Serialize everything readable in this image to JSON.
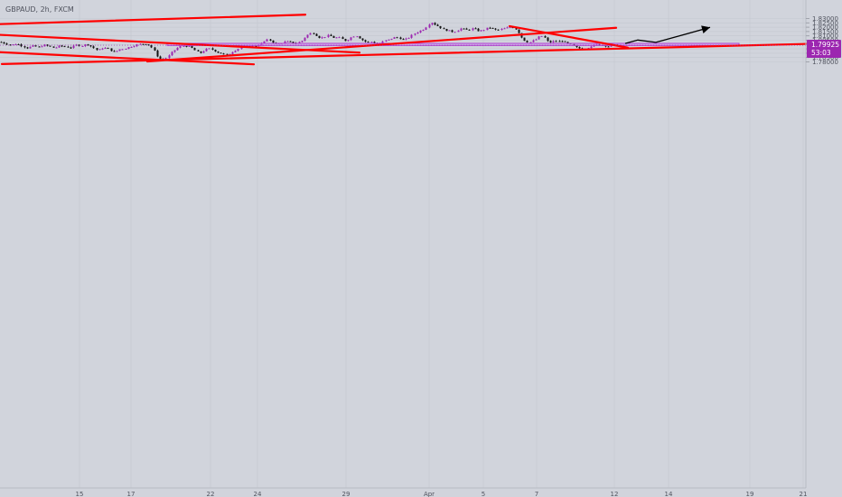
{
  "header": {
    "symbol_label": "GBPAUD, 2h, FXCM"
  },
  "colors": {
    "background": "#d1d4dc",
    "grid": "#c4c7cf",
    "candle_up": "#9c27b0",
    "candle_down": "#131313",
    "trendline": "#ff0000",
    "zone_fill": "#d28cff",
    "zone_border": "#b040d0",
    "arrow": "#000000",
    "price_tag": "#9c27b0"
  },
  "chart_data": {
    "type": "candlestick",
    "symbol": "GBPAUD",
    "timeframe": "2h",
    "source": "FXCM",
    "y_axis": {
      "range": [
        1.776,
        1.834
      ],
      "tick_labels": [
        "1.83000",
        "1.82500",
        "1.82000",
        "1.81500",
        "1.81000",
        "1.80500",
        "1.80000",
        "1.79500",
        "1.79000",
        "1.78500",
        "1.78000"
      ],
      "tick_values": [
        1.83,
        1.825,
        1.82,
        1.815,
        1.81,
        1.805,
        1.8,
        1.795,
        1.79,
        1.785,
        1.78
      ]
    },
    "x_axis": {
      "tick_labels": [
        "15",
        "17",
        "22",
        "24",
        "29",
        "Apr",
        "5",
        "7",
        "12",
        "14",
        "19",
        "21"
      ]
    },
    "current_price": {
      "value": 1.79925,
      "label": "1.79925",
      "countdown": "53:03"
    },
    "price_path": [
      [
        0,
        1.803
      ],
      [
        6,
        1.801
      ],
      [
        12,
        1.7995
      ],
      [
        18,
        1.801
      ],
      [
        24,
        1.7985
      ],
      [
        30,
        1.796
      ],
      [
        36,
        1.7985
      ],
      [
        42,
        1.797
      ],
      [
        48,
        1.7995
      ],
      [
        54,
        1.798
      ],
      [
        60,
        1.796
      ],
      [
        66,
        1.7985
      ],
      [
        72,
        1.7975
      ],
      [
        78,
        1.7965
      ],
      [
        84,
        1.7995
      ],
      [
        90,
        1.7985
      ],
      [
        96,
        1.8005
      ],
      [
        102,
        1.797
      ],
      [
        108,
        1.793
      ],
      [
        114,
        1.7965
      ],
      [
        120,
        1.795
      ],
      [
        126,
        1.791
      ],
      [
        132,
        1.7945
      ],
      [
        138,
        1.7955
      ],
      [
        144,
        1.7975
      ],
      [
        150,
        1.7995
      ],
      [
        156,
        1.8005
      ],
      [
        162,
        1.801
      ],
      [
        166,
        1.7985
      ],
      [
        170,
        1.7935
      ],
      [
        174,
        1.7865
      ],
      [
        178,
        1.782
      ],
      [
        182,
        1.7835
      ],
      [
        186,
        1.7865
      ],
      [
        190,
        1.791
      ],
      [
        194,
        1.7945
      ],
      [
        198,
        1.7975
      ],
      [
        202,
        1.7985
      ],
      [
        206,
        1.798
      ],
      [
        210,
        1.7975
      ],
      [
        214,
        1.7945
      ],
      [
        218,
        1.7915
      ],
      [
        222,
        1.7905
      ],
      [
        226,
        1.7935
      ],
      [
        230,
        1.7955
      ],
      [
        234,
        1.7945
      ],
      [
        238,
        1.7925
      ],
      [
        242,
        1.7905
      ],
      [
        246,
        1.7895
      ],
      [
        250,
        1.7875
      ],
      [
        254,
        1.7895
      ],
      [
        258,
        1.7925
      ],
      [
        262,
        1.7945
      ],
      [
        266,
        1.7965
      ],
      [
        270,
        1.797
      ],
      [
        276,
        1.7975
      ],
      [
        282,
        1.7985
      ],
      [
        288,
        1.8005
      ],
      [
        292,
        1.8035
      ],
      [
        296,
        1.8055
      ],
      [
        300,
        1.8045
      ],
      [
        304,
        1.8005
      ],
      [
        310,
        1.8015
      ],
      [
        316,
        1.8035
      ],
      [
        322,
        1.8025
      ],
      [
        328,
        1.8015
      ],
      [
        334,
        1.8045
      ],
      [
        338,
        1.8095
      ],
      [
        342,
        1.8125
      ],
      [
        346,
        1.8135
      ],
      [
        350,
        1.8105
      ],
      [
        354,
        1.8075
      ],
      [
        358,
        1.8085
      ],
      [
        362,
        1.8105
      ],
      [
        366,
        1.8095
      ],
      [
        370,
        1.8075
      ],
      [
        374,
        1.8085
      ],
      [
        378,
        1.8065
      ],
      [
        382,
        1.8045
      ],
      [
        386,
        1.8065
      ],
      [
        390,
        1.8095
      ],
      [
        394,
        1.8105
      ],
      [
        398,
        1.8075
      ],
      [
        402,
        1.8045
      ],
      [
        406,
        1.8025
      ],
      [
        410,
        1.8035
      ],
      [
        414,
        1.8015
      ],
      [
        418,
        1.8005
      ],
      [
        422,
        1.8025
      ],
      [
        426,
        1.8045
      ],
      [
        430,
        1.8055
      ],
      [
        434,
        1.8075
      ],
      [
        438,
        1.8085
      ],
      [
        442,
        1.8075
      ],
      [
        446,
        1.8055
      ],
      [
        450,
        1.8065
      ],
      [
        454,
        1.8095
      ],
      [
        458,
        1.8125
      ],
      [
        462,
        1.8145
      ],
      [
        466,
        1.8165
      ],
      [
        470,
        1.8185
      ],
      [
        474,
        1.8235
      ],
      [
        478,
        1.8255
      ],
      [
        482,
        1.8225
      ],
      [
        486,
        1.8205
      ],
      [
        490,
        1.8175
      ],
      [
        494,
        1.8165
      ],
      [
        498,
        1.8155
      ],
      [
        502,
        1.8145
      ],
      [
        506,
        1.8165
      ],
      [
        510,
        1.8185
      ],
      [
        514,
        1.8175
      ],
      [
        518,
        1.8165
      ],
      [
        522,
        1.8185
      ],
      [
        526,
        1.8175
      ],
      [
        530,
        1.8155
      ],
      [
        534,
        1.8165
      ],
      [
        538,
        1.8185
      ],
      [
        542,
        1.8195
      ],
      [
        546,
        1.8175
      ],
      [
        550,
        1.8165
      ],
      [
        554,
        1.8175
      ],
      [
        558,
        1.8185
      ],
      [
        562,
        1.8195
      ],
      [
        566,
        1.8205
      ],
      [
        570,
        1.8185
      ],
      [
        574,
        1.8135
      ],
      [
        578,
        1.8065
      ],
      [
        582,
        1.8035
      ],
      [
        586,
        1.8025
      ],
      [
        590,
        1.8045
      ],
      [
        594,
        1.8065
      ],
      [
        598,
        1.8105
      ],
      [
        602,
        1.8085
      ],
      [
        606,
        1.8035
      ],
      [
        610,
        1.8025
      ],
      [
        614,
        1.8045
      ],
      [
        618,
        1.8035
      ],
      [
        622,
        1.8045
      ],
      [
        626,
        1.8015
      ],
      [
        630,
        1.8005
      ],
      [
        634,
        1.7985
      ],
      [
        638,
        1.7965
      ],
      [
        642,
        1.7955
      ],
      [
        646,
        1.7945
      ],
      [
        650,
        1.7965
      ],
      [
        654,
        1.7985
      ],
      [
        658,
        1.7995
      ],
      [
        662,
        1.8005
      ],
      [
        666,
        1.7995
      ],
      [
        670,
        1.7985
      ],
      [
        674,
        1.7975
      ],
      [
        678,
        1.7995
      ],
      [
        682,
        1.7985
      ],
      [
        686,
        1.7993
      ]
    ],
    "drawings": {
      "support_zone": {
        "price_top": 1.80135,
        "price_bottom": 1.7989
      },
      "trendlines": [
        [
          [
            -2,
            1.8235
          ],
          [
            338,
            1.8344
          ]
        ],
        [
          [
            -2,
            1.8113
          ],
          [
            398,
            1.7907
          ]
        ],
        [
          [
            -2,
            1.7913
          ],
          [
            281,
            1.7772
          ]
        ],
        [
          [
            163,
            1.7805
          ],
          [
            682,
            1.8193
          ]
        ],
        [
          [
            2,
            1.7775
          ],
          [
            896,
            1.8008
          ]
        ],
        [
          [
            564,
            1.8212
          ],
          [
            695,
            1.7964
          ]
        ]
      ],
      "projection_arrow": [
        [
          692,
          1.8012
        ],
        [
          706,
          1.8052
        ],
        [
          726,
          1.8025
        ],
        [
          786,
          1.8198
        ]
      ]
    }
  }
}
